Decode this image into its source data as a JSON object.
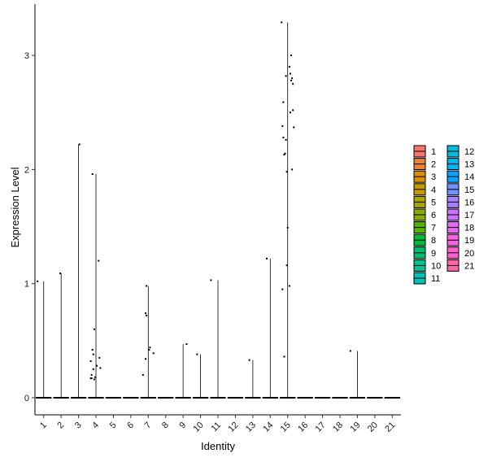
{
  "chart_data": {
    "type": "violin",
    "xlabel": "Identity",
    "ylabel": "Expression Level",
    "ylim": [
      -0.15,
      3.45
    ],
    "yticks": [
      0,
      1,
      2,
      3
    ],
    "grid": false,
    "legend_position": "right",
    "categories": [
      "1",
      "2",
      "3",
      "4",
      "5",
      "6",
      "7",
      "8",
      "9",
      "10",
      "11",
      "12",
      "13",
      "14",
      "15",
      "16",
      "17",
      "18",
      "19",
      "20",
      "21"
    ],
    "legend_colors": [
      "#F8766D",
      "#EB8335",
      "#DA8F00",
      "#C49A00",
      "#A9A400",
      "#86AC00",
      "#53B400",
      "#00BA38",
      "#00BE6D",
      "#00C094",
      "#00C0B8",
      "#00BCD8",
      "#00B4EF",
      "#00A6FF",
      "#6F93FF",
      "#A680FF",
      "#CA6FFF",
      "#E46BF0",
      "#F564E3",
      "#FE61CF",
      "#FF66A8"
    ],
    "max_values": [
      1.02,
      1.09,
      2.22,
      1.96,
      0,
      0,
      0.98,
      0,
      0.47,
      0.38,
      1.03,
      0,
      0.33,
      1.22,
      3.29,
      0,
      0,
      0,
      0.41,
      0,
      0
    ],
    "points": [
      [
        [
          -0.35,
          1.02
        ]
      ],
      [
        [
          -0.05,
          1.09
        ]
      ],
      [
        [
          0.05,
          2.22
        ]
      ],
      [
        [
          -0.2,
          1.96
        ],
        [
          0.15,
          1.2
        ],
        [
          -0.1,
          0.6
        ],
        [
          -0.2,
          0.42
        ],
        [
          -0.15,
          0.38
        ],
        [
          0.2,
          0.35
        ],
        [
          -0.3,
          0.32
        ],
        [
          0.05,
          0.28
        ],
        [
          -0.15,
          0.25
        ],
        [
          0.25,
          0.26
        ],
        [
          -0.25,
          0.2
        ],
        [
          -0.05,
          0.18
        ],
        [
          -0.3,
          0.17
        ],
        [
          -0.1,
          0.16
        ],
        [
          -0.25,
          0.17
        ]
      ],
      [],
      [],
      [
        [
          -0.1,
          0.98
        ],
        [
          -0.15,
          0.74
        ],
        [
          -0.1,
          0.72
        ],
        [
          0.1,
          0.44
        ],
        [
          0.05,
          0.42
        ],
        [
          0.3,
          0.39
        ],
        [
          -0.15,
          0.34
        ],
        [
          -0.3,
          0.2
        ]
      ],
      [],
      [
        [
          0.2,
          0.47
        ]
      ],
      [
        [
          -0.2,
          0.38
        ]
      ],
      [
        [
          -0.4,
          1.03
        ]
      ],
      [],
      [
        [
          -0.2,
          0.33
        ]
      ],
      [
        [
          -0.2,
          1.22
        ]
      ],
      [
        [
          -0.35,
          3.29
        ],
        [
          0.2,
          3.0
        ],
        [
          0.1,
          2.9
        ],
        [
          0.15,
          2.84
        ],
        [
          -0.1,
          2.82
        ],
        [
          0.25,
          2.8
        ],
        [
          0.2,
          2.78
        ],
        [
          0.3,
          2.75
        ],
        [
          -0.25,
          2.59
        ],
        [
          0.3,
          2.52
        ],
        [
          0.15,
          2.5
        ],
        [
          -0.3,
          2.38
        ],
        [
          0.35,
          2.37
        ],
        [
          -0.25,
          2.28
        ],
        [
          -0.1,
          2.26
        ],
        [
          -0.15,
          2.14
        ],
        [
          -0.2,
          2.13
        ],
        [
          0.25,
          2.0
        ],
        [
          -0.05,
          1.98
        ],
        [
          0,
          1.49
        ],
        [
          -0.05,
          1.16
        ],
        [
          0.1,
          0.98
        ],
        [
          -0.3,
          0.95
        ],
        [
          -0.2,
          0.36
        ]
      ],
      [],
      [],
      [],
      [
        [
          -0.4,
          0.41
        ]
      ],
      [],
      []
    ]
  }
}
